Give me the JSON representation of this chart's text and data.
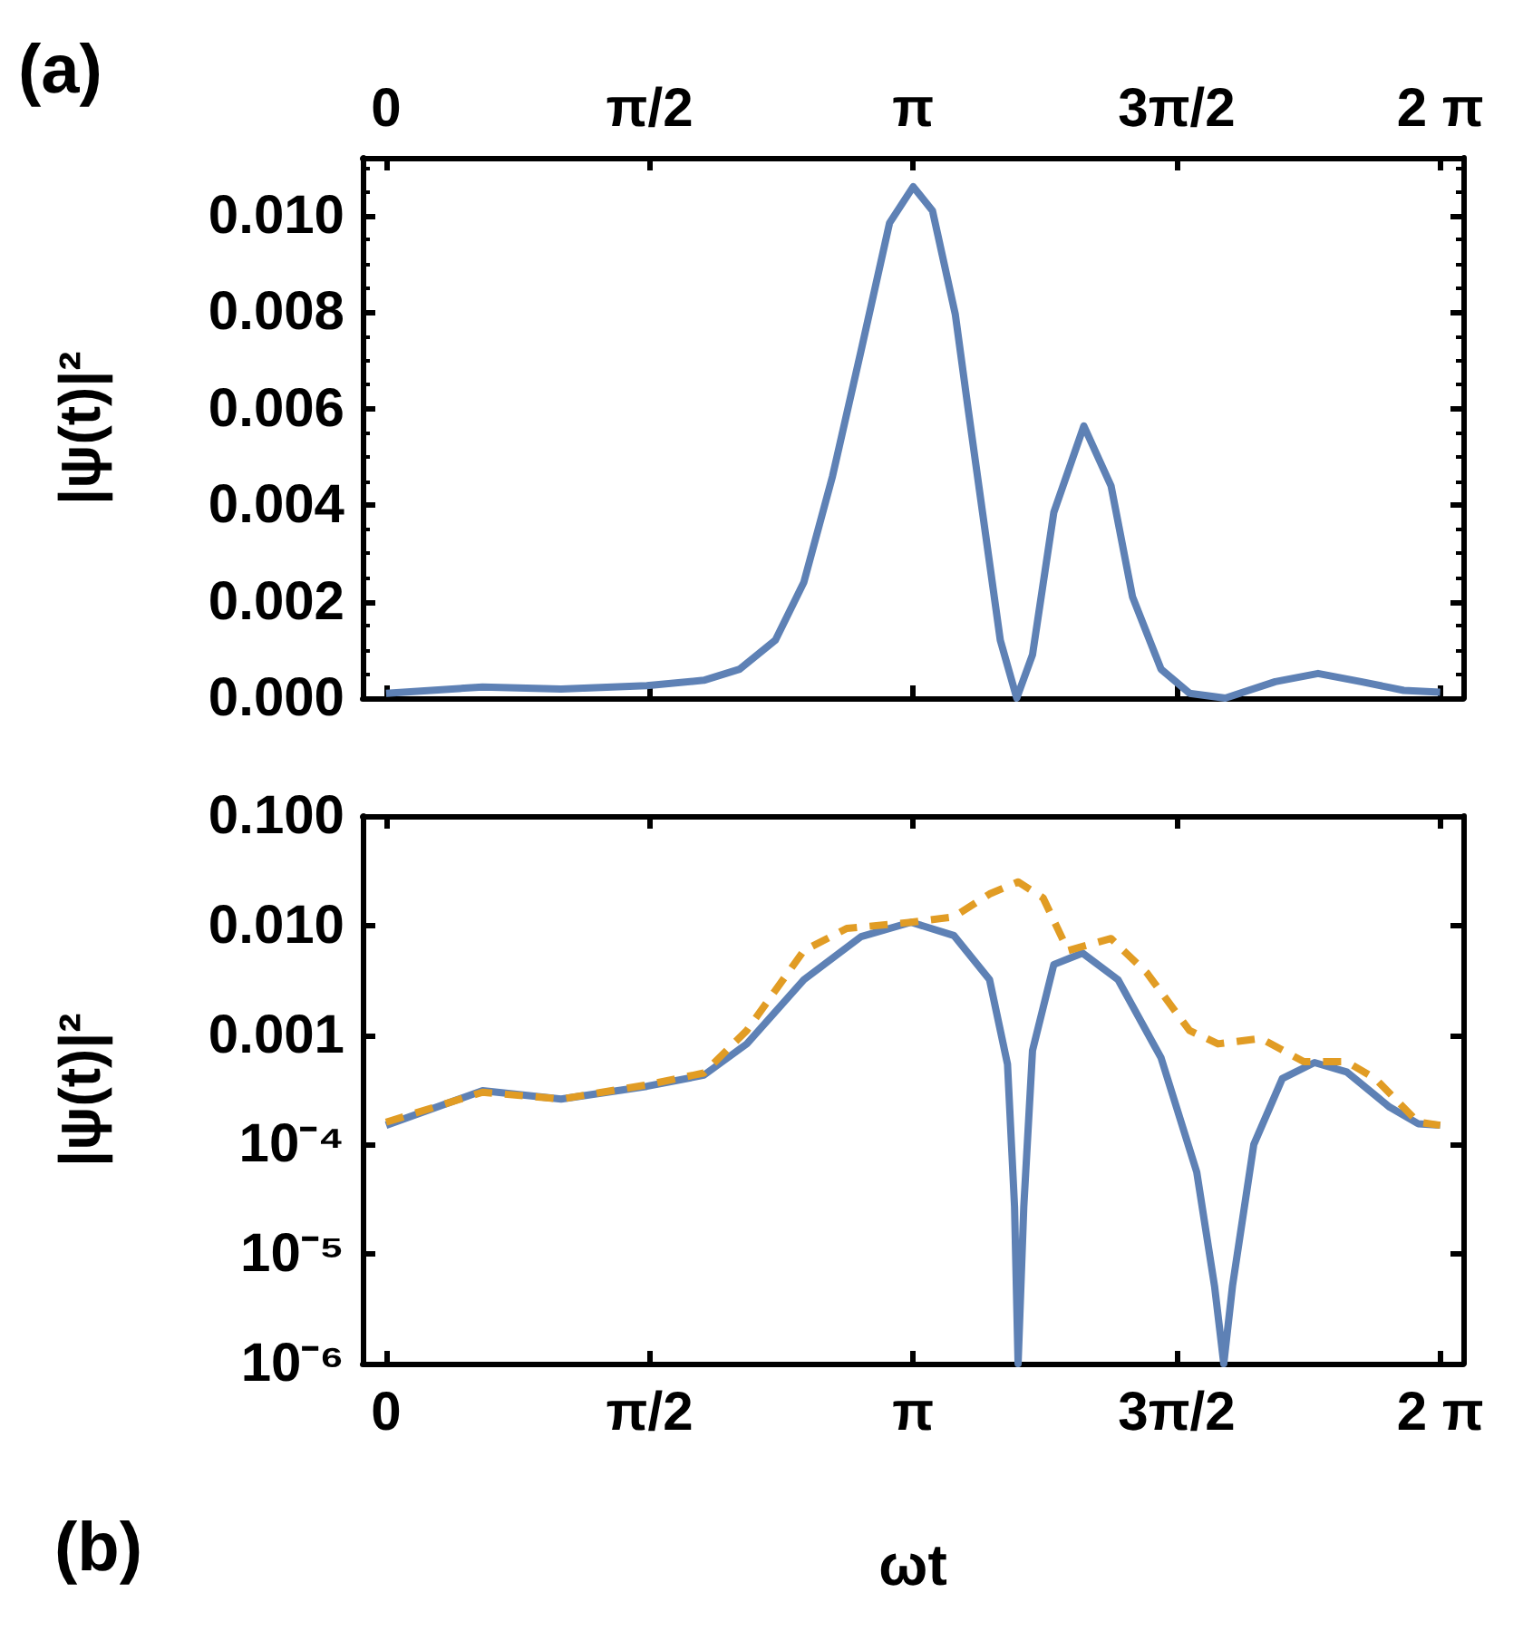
{
  "chart_data": [
    {
      "type": "line",
      "ylabel": "|ψ(t)|²",
      "annotations": [
        "(a)"
      ],
      "xlim": [
        -0.14,
        6.42
      ],
      "xticks": [
        {
          "value": 0,
          "label": "0"
        },
        {
          "value": 1.5708,
          "label": "π/2"
        },
        {
          "value": 3.1416,
          "label": "π"
        },
        {
          "value": 4.7124,
          "label": "3π/2"
        },
        {
          "value": 6.2832,
          "label": "2 π"
        }
      ],
      "ylim": [
        0,
        0.0112
      ],
      "yticks": [
        {
          "value": 0,
          "label": "0.000"
        },
        {
          "value": 0.002,
          "label": "0.002"
        },
        {
          "value": 0.004,
          "label": "0.004"
        },
        {
          "value": 0.006,
          "label": "0.006"
        },
        {
          "value": 0.008,
          "label": "0.008"
        },
        {
          "value": 0.01,
          "label": "0.010"
        }
      ],
      "series": [
        {
          "color": "#5e81b5",
          "x": [
            0,
            0.575,
            1.043,
            1.554,
            1.894,
            2.107,
            2.32,
            2.49,
            2.661,
            2.831,
            3.001,
            3.142,
            3.257,
            3.393,
            3.469,
            3.555,
            3.661,
            3.759,
            3.853,
            3.98,
            4.159,
            4.321,
            4.449,
            4.619,
            4.789,
            5.002,
            5.3,
            5.555,
            5.811,
            6.066,
            6.283
          ],
          "values": [
            0.0001,
            0.00023,
            0.00019,
            0.00026,
            0.00037,
            0.0006,
            0.0012,
            0.0024,
            0.0046,
            0.0072,
            0.00985,
            0.0106,
            0.0101,
            0.00795,
            0.006,
            0.00385,
            0.0012,
            0,
            0.0009,
            0.00385,
            0.00564,
            0.0044,
            0.0021,
            0.0006,
            0.0001,
            0,
            0.00034,
            0.00051,
            0.00034,
            0.00016,
            0.00012
          ]
        }
      ]
    },
    {
      "type": "line",
      "ylabel": "|ψ(t)|²",
      "xlabel": "ωt",
      "annotations": [
        "(b)"
      ],
      "log": "y",
      "xlim": [
        -0.14,
        6.42
      ],
      "xticks": [
        {
          "value": 0,
          "label": "0"
        },
        {
          "value": 1.5708,
          "label": "π/2"
        },
        {
          "value": 3.1416,
          "label": "π"
        },
        {
          "value": 4.7124,
          "label": "3π/2"
        },
        {
          "value": 6.2832,
          "label": "2 π"
        }
      ],
      "ylim": [
        1e-06,
        0.1
      ],
      "yticks": [
        {
          "value": 1e-06,
          "label": "10⁻⁶"
        },
        {
          "value": 1e-05,
          "label": "10⁻⁵"
        },
        {
          "value": 0.0001,
          "label": "10⁻⁴"
        },
        {
          "value": 0.001,
          "label": "0.001"
        },
        {
          "value": 0.01,
          "label": "0.010"
        },
        {
          "value": 0.1,
          "label": "0.100"
        }
      ],
      "series": [
        {
          "color": "#5e81b5",
          "line_style": "solid",
          "x": [
            0,
            0.575,
            1.043,
            1.554,
            1.894,
            2.15,
            2.49,
            2.831,
            3.129,
            3.384,
            3.597,
            3.704,
            3.746,
            3.767,
            3.801,
            3.853,
            3.98,
            4.151,
            4.363,
            4.619,
            4.832,
            4.938,
            4.993,
            5.045,
            5.172,
            5.342,
            5.534,
            5.726,
            5.981,
            6.151,
            6.283
          ],
          "values": [
            0.00015,
            0.00031,
            0.00026,
            0.00034,
            0.00043,
            0.00083,
            0.0032,
            0.0079,
            0.0107,
            0.0081,
            0.0032,
            0.00054,
            2.7e-05,
            1e-06,
            2.7e-05,
            0.00072,
            0.0044,
            0.0056,
            0.0032,
            0.00062,
            5.6e-05,
            5.1e-06,
            1e-06,
            5.1e-06,
            0.0001,
            0.0004,
            0.00056,
            0.00046,
            0.00022,
            0.000155,
            0.00015
          ]
        },
        {
          "color": "#e19c24",
          "line_style": "dashed",
          "x": [
            0,
            0.575,
            1.043,
            1.554,
            1.894,
            2.15,
            2.49,
            2.746,
            3.129,
            3.384,
            3.597,
            3.767,
            3.916,
            4.065,
            4.321,
            4.534,
            4.789,
            4.959,
            5.215,
            5.47,
            5.726,
            5.896,
            6.151,
            6.283
          ],
          "values": [
            0.00016,
            0.0003,
            0.00026,
            0.00035,
            0.00045,
            0.0011,
            0.0059,
            0.0094,
            0.0107,
            0.012,
            0.0194,
            0.025,
            0.0179,
            0.0059,
            0.0076,
            0.0037,
            0.0011,
            0.00083,
            0.00093,
            0.00057,
            0.00057,
            0.0004,
            0.00016,
            0.00015
          ]
        }
      ]
    }
  ]
}
